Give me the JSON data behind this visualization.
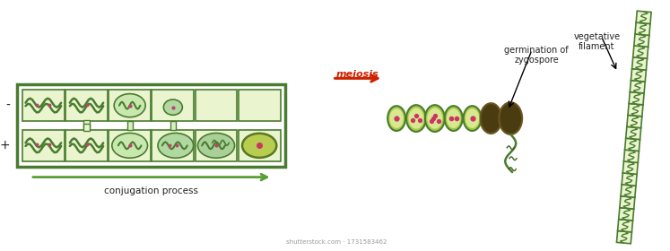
{
  "bg_color": "#ffffff",
  "green_dark": "#4a7c2f",
  "green_medium": "#5a9e35",
  "green_light": "#a8c84a",
  "green_fill": "#c5dc78",
  "green_cell_fill": "#eaf5d0",
  "brown_dark": "#4a3c10",
  "brown_medium": "#6b5520",
  "brown_light": "#8a7030",
  "olive_green": "#7a9020",
  "red_arrow": "#cc2200",
  "text_color": "#222222",
  "red_text": "#cc2200",
  "conjugation_label": "conjugation process",
  "meiosis_label": "meiosis",
  "germination_label": "germination of\nzygospore",
  "vegetative_label": "vegetative\nfilament",
  "minus_label": "-",
  "plus_label": "+",
  "watermark": "shutterstock.com · 1731583462"
}
